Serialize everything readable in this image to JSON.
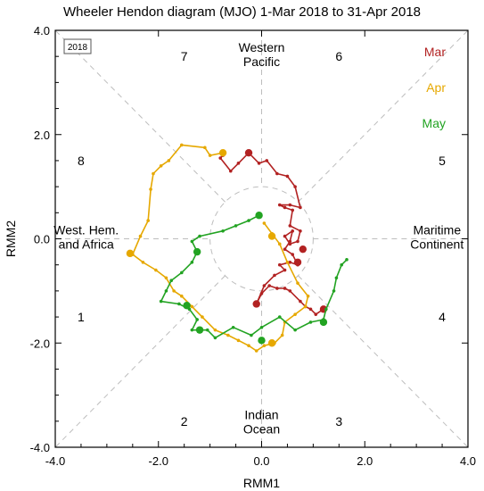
{
  "chart_data": {
    "type": "line",
    "title": "Wheeler Hendon diagram (MJO) 1-Mar 2018 to 31-Apr 2018",
    "xlabel": "RMM1",
    "ylabel": "RMM2",
    "xlim": [
      -4,
      4
    ],
    "ylim": [
      -4,
      4
    ],
    "x_ticks": [
      "-4.0",
      "-2.0",
      "0.0",
      "2.0",
      "4.0"
    ],
    "y_ticks": [
      "4.0",
      "2.0",
      "0.0",
      "-2.0",
      "-4.0"
    ],
    "grid": "dashed diagonals and axes through origin, dashed unit circle",
    "year_label": "2018",
    "phase_numbers": [
      {
        "label": "1",
        "x": -3.5,
        "y": -1.5
      },
      {
        "label": "2",
        "x": -1.5,
        "y": -3.5
      },
      {
        "label": "3",
        "x": 1.5,
        "y": -3.5
      },
      {
        "label": "4",
        "x": 3.5,
        "y": -1.5
      },
      {
        "label": "5",
        "x": 3.5,
        "y": 1.5
      },
      {
        "label": "6",
        "x": 1.5,
        "y": 3.5
      },
      {
        "label": "7",
        "x": -1.5,
        "y": 3.5
      },
      {
        "label": "8",
        "x": -3.5,
        "y": 1.5
      }
    ],
    "regions": [
      {
        "lines": [
          "Western",
          "Pacific"
        ],
        "x": 0.0,
        "y": 3.5
      },
      {
        "lines": [
          "Indian",
          "Ocean"
        ],
        "x": 0.0,
        "y": -3.55
      },
      {
        "lines": [
          "West. Hem.",
          "and Africa"
        ],
        "x": -3.4,
        "y": 0.0
      },
      {
        "lines": [
          "Maritime",
          "Continent"
        ],
        "x": 3.4,
        "y": 0.0
      }
    ],
    "legend_placement": "top-right",
    "series": [
      {
        "name": "Mar",
        "color": "#b22222",
        "points": [
          [
            1.2,
            -1.35
          ],
          [
            1.05,
            -1.45
          ],
          [
            0.95,
            -1.35
          ],
          [
            0.85,
            -1.3
          ],
          [
            0.75,
            -1.2
          ],
          [
            0.55,
            -1.0
          ],
          [
            0.45,
            -0.95
          ],
          [
            0.3,
            -0.95
          ],
          [
            0.15,
            -0.9
          ],
          [
            0.0,
            -1.05
          ],
          [
            -0.1,
            -1.25
          ],
          [
            0.05,
            -0.9
          ],
          [
            0.25,
            -0.7
          ],
          [
            0.45,
            -0.6
          ],
          [
            0.35,
            -0.5
          ],
          [
            0.55,
            -0.45
          ],
          [
            0.7,
            -0.5
          ],
          [
            0.6,
            -0.3
          ],
          [
            0.45,
            -0.2
          ],
          [
            0.55,
            -0.05
          ],
          [
            0.6,
            0.15
          ],
          [
            0.45,
            0.05
          ],
          [
            0.55,
            -0.1
          ],
          [
            0.7,
            -0.05
          ],
          [
            0.75,
            0.15
          ],
          [
            0.55,
            0.25
          ],
          [
            0.6,
            0.55
          ],
          [
            0.45,
            0.6
          ],
          [
            0.35,
            0.65
          ],
          [
            0.55,
            0.65
          ],
          [
            0.75,
            0.6
          ],
          [
            0.65,
            1.0
          ],
          [
            0.5,
            1.2
          ],
          [
            0.3,
            1.25
          ],
          [
            0.1,
            1.5
          ],
          [
            -0.05,
            1.45
          ],
          [
            -0.25,
            1.65
          ],
          [
            -0.45,
            1.45
          ],
          [
            -0.6,
            1.3
          ],
          [
            -0.8,
            1.55
          ],
          [
            -0.75,
            1.6
          ]
        ],
        "markers": [
          [
            1.2,
            -1.35
          ],
          [
            0.7,
            -0.45
          ],
          [
            -0.25,
            1.65
          ],
          [
            -0.1,
            -1.25
          ],
          [
            0.8,
            -0.2
          ]
        ]
      },
      {
        "name": "Apr",
        "color": "#e6a800",
        "points": [
          [
            -0.75,
            1.65
          ],
          [
            -1.0,
            1.6
          ],
          [
            -1.1,
            1.75
          ],
          [
            -1.55,
            1.8
          ],
          [
            -1.8,
            1.5
          ],
          [
            -1.95,
            1.4
          ],
          [
            -2.1,
            1.25
          ],
          [
            -2.15,
            0.95
          ],
          [
            -2.2,
            0.35
          ],
          [
            -2.35,
            0.05
          ],
          [
            -2.5,
            -0.3
          ],
          [
            -2.3,
            -0.45
          ],
          [
            -2.05,
            -0.6
          ],
          [
            -1.85,
            -0.75
          ],
          [
            -1.7,
            -1.0
          ],
          [
            -1.55,
            -1.1
          ],
          [
            -1.35,
            -1.3
          ],
          [
            -1.15,
            -1.5
          ],
          [
            -0.9,
            -1.75
          ],
          [
            -0.65,
            -1.85
          ],
          [
            -0.45,
            -1.95
          ],
          [
            -0.25,
            -2.05
          ],
          [
            -0.1,
            -2.15
          ],
          [
            0.05,
            -2.05
          ],
          [
            0.25,
            -2.0
          ],
          [
            0.4,
            -1.85
          ],
          [
            0.45,
            -1.6
          ],
          [
            0.65,
            -1.45
          ],
          [
            0.85,
            -1.3
          ],
          [
            0.9,
            -1.1
          ],
          [
            0.7,
            -0.85
          ],
          [
            0.5,
            -0.45
          ],
          [
            0.35,
            -0.1
          ],
          [
            0.2,
            0.1
          ],
          [
            0.05,
            0.3
          ]
        ],
        "markers": [
          [
            -0.75,
            1.65
          ],
          [
            -2.55,
            -0.28
          ],
          [
            0.2,
            -2.0
          ],
          [
            0.2,
            0.05
          ]
        ]
      },
      {
        "name": "May",
        "color": "#22a322",
        "points": [
          [
            -0.05,
            0.45
          ],
          [
            -0.25,
            0.35
          ],
          [
            -0.5,
            0.25
          ],
          [
            -0.75,
            0.15
          ],
          [
            -1.2,
            0.05
          ],
          [
            -1.35,
            -0.05
          ],
          [
            -1.25,
            -0.25
          ],
          [
            -1.35,
            -0.45
          ],
          [
            -1.55,
            -0.65
          ],
          [
            -1.75,
            -0.8
          ],
          [
            -1.85,
            -1.0
          ],
          [
            -1.95,
            -1.2
          ],
          [
            -1.6,
            -1.25
          ],
          [
            -1.4,
            -1.35
          ],
          [
            -1.25,
            -1.55
          ],
          [
            -1.35,
            -1.75
          ],
          [
            -1.05,
            -1.75
          ],
          [
            -0.9,
            -1.9
          ],
          [
            -0.55,
            -1.7
          ],
          [
            -0.2,
            -1.85
          ],
          [
            0.0,
            -1.7
          ],
          [
            0.35,
            -1.5
          ],
          [
            0.65,
            -1.75
          ],
          [
            0.95,
            -1.6
          ],
          [
            1.2,
            -1.55
          ],
          [
            1.25,
            -1.35
          ],
          [
            1.4,
            -1.0
          ],
          [
            1.45,
            -0.75
          ],
          [
            1.55,
            -0.5
          ],
          [
            1.65,
            -0.4
          ]
        ],
        "markers": [
          [
            -0.05,
            0.45
          ],
          [
            -1.25,
            -0.25
          ],
          [
            -1.45,
            -1.28
          ],
          [
            -1.2,
            -1.75
          ],
          [
            0.0,
            -1.95
          ],
          [
            1.2,
            -1.6
          ]
        ]
      }
    ]
  }
}
